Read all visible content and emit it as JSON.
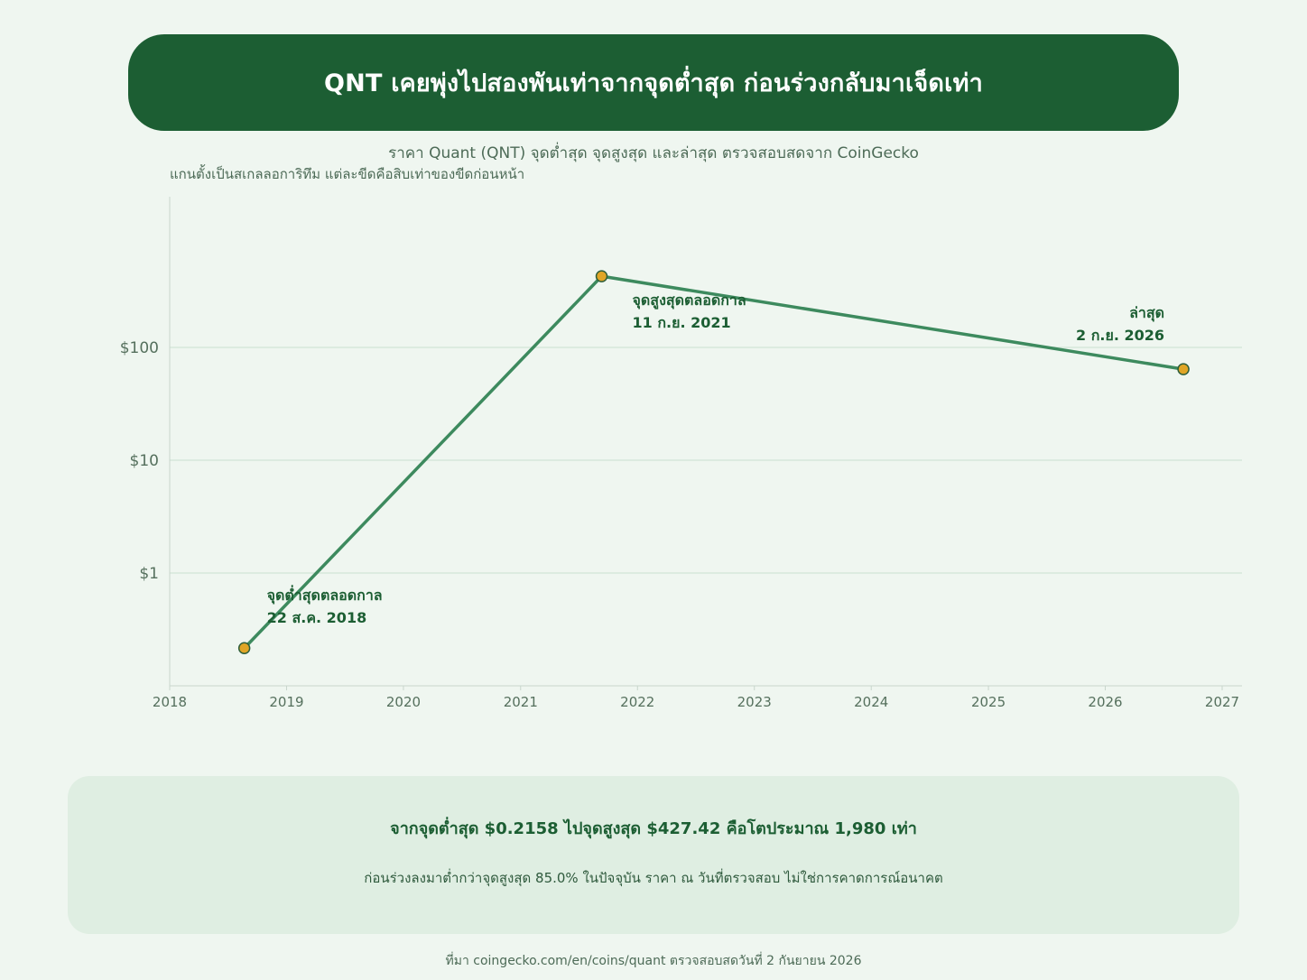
{
  "header": {
    "title": "QNT เคยพุ่งไปสองพันเท่าจากจุดต่ำสุด ก่อนร่วงกลับมาเจ็ดเท่า",
    "subtitle": "ราคา Quant (QNT) จุดต่ำสุด จุดสูงสุด และล่าสุด ตรวจสอบสดจาก CoinGecko",
    "axis_note": "แกนตั้งเป็นสเกลลอการิทึม แต่ละขีดคือสิบเท่าของขีดก่อนหน้า"
  },
  "chart_data": {
    "type": "line",
    "y_scale": "log",
    "ylim": [
      0.1,
      1000
    ],
    "xlim": [
      "2018-01-01",
      "2027-01-01"
    ],
    "y_ticks": [
      {
        "value": 1,
        "label": "$1"
      },
      {
        "value": 10,
        "label": "$10"
      },
      {
        "value": 100,
        "label": "$100"
      }
    ],
    "x_ticks": [
      "2018",
      "2019",
      "2020",
      "2021",
      "2022",
      "2023",
      "2024",
      "2025",
      "2026",
      "2027"
    ],
    "grid": "horizontal",
    "series": [
      {
        "points": [
          {
            "x": "2018-08-22",
            "y": 0.2158,
            "label_line1": "จุดต่ำสุดตลอดกาล",
            "label_line2": "22 ส.ค. 2018",
            "label_pos": "upper-right"
          },
          {
            "x": "2021-09-11",
            "y": 427.42,
            "label_line1": "จุดสูงสุดตลอดกาล",
            "label_line2": "11 ก.ย. 2021",
            "label_pos": "lower-right"
          },
          {
            "x": "2026-09-02",
            "y": 64.1,
            "label_line1": "ล่าสุด",
            "label_line2": "2 ก.ย. 2026",
            "label_pos": "upper-left"
          }
        ]
      }
    ],
    "colors": {
      "line": "#3d8a5e",
      "marker_fill": "#e0a526",
      "marker_stroke": "#2e5e3a",
      "annotation": "#1c5e33",
      "grid": "#dcebe0",
      "axis": "#c8d6cc",
      "tick_text": "#55705d"
    }
  },
  "summary": {
    "main": "จากจุดต่ำสุด $0.2158 ไปจุดสูงสุด $427.42 คือโตประมาณ 1,980 เท่า",
    "sub": "ก่อนร่วงลงมาต่ำกว่าจุดสูงสุด 85.0% ในปัจจุบัน ราคา ณ วันที่ตรวจสอบ ไม่ใช่การคาดการณ์อนาคต"
  },
  "footer": {
    "source": "ที่มา coingecko.com/en/coins/quant ตรวจสอบสดวันที่ 2 กันยายน 2026"
  }
}
